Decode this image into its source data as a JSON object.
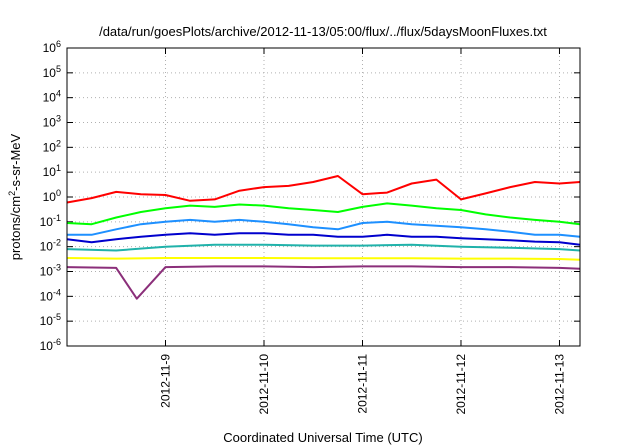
{
  "chart_data": {
    "type": "line",
    "title": "/data/run/goesPlots/archive/2012-11-13/05:00/flux/../flux/5daysMoonFluxes.txt",
    "xlabel": "Coordinated Universal Time (UTC)",
    "ylabel": {
      "prefix": "protons/cm",
      "sup": "2",
      "suffix": "-s-sr-MeV"
    },
    "yscale": "log",
    "ylim": [
      1e-06,
      1000000.0
    ],
    "xlim": [
      "2012-11-08 00:00",
      "2012-11-13 05:00"
    ],
    "grid": true,
    "y_ticks": [
      {
        "value": 1e-06,
        "base": "10",
        "exp": "-6"
      },
      {
        "value": 1e-05,
        "base": "10",
        "exp": "-5"
      },
      {
        "value": 0.0001,
        "base": "10",
        "exp": "-4"
      },
      {
        "value": 0.001,
        "base": "10",
        "exp": "-3"
      },
      {
        "value": 0.01,
        "base": "10",
        "exp": "-2"
      },
      {
        "value": 0.1,
        "base": "10",
        "exp": "-1"
      },
      {
        "value": 1.0,
        "base": "10",
        "exp": "0"
      },
      {
        "value": 10.0,
        "base": "10",
        "exp": "1"
      },
      {
        "value": 100.0,
        "base": "10",
        "exp": "2"
      },
      {
        "value": 1000.0,
        "base": "10",
        "exp": "3"
      },
      {
        "value": 10000.0,
        "base": "10",
        "exp": "4"
      },
      {
        "value": 100000.0,
        "base": "10",
        "exp": "5"
      },
      {
        "value": 1000000.0,
        "base": "10",
        "exp": "6"
      }
    ],
    "x_ticks": [
      "2012-11-9",
      "2012-11-10",
      "2012-11-11",
      "2012-11-12",
      "2012-11-13"
    ],
    "x_tick_dates": [
      "2012-11-09 00:00",
      "2012-11-10 00:00",
      "2012-11-11 00:00",
      "2012-11-12 00:00",
      "2012-11-13 00:00"
    ],
    "series": [
      {
        "color": "#ff0000",
        "x": [
          "2012-11-08 00:00",
          "2012-11-08 06:00",
          "2012-11-08 12:00",
          "2012-11-08 18:00",
          "2012-11-09 00:00",
          "2012-11-09 06:00",
          "2012-11-09 12:00",
          "2012-11-09 18:00",
          "2012-11-10 00:00",
          "2012-11-10 06:00",
          "2012-11-10 12:00",
          "2012-11-10 18:00",
          "2012-11-11 00:00",
          "2012-11-11 06:00",
          "2012-11-11 12:00",
          "2012-11-11 18:00",
          "2012-11-12 00:00",
          "2012-11-12 06:00",
          "2012-11-12 12:00",
          "2012-11-12 18:00",
          "2012-11-13 00:00",
          "2012-11-13 05:00"
        ],
        "y": [
          0.6,
          0.9,
          1.6,
          1.3,
          1.2,
          0.7,
          0.8,
          1.8,
          2.5,
          2.8,
          4,
          7,
          1.3,
          1.5,
          3.5,
          5,
          0.8,
          1.4,
          2.5,
          4,
          3.5,
          4
        ]
      },
      {
        "color": "#00ff00",
        "x": [
          "2012-11-08 00:00",
          "2012-11-08 06:00",
          "2012-11-08 12:00",
          "2012-11-08 18:00",
          "2012-11-09 00:00",
          "2012-11-09 06:00",
          "2012-11-09 12:00",
          "2012-11-09 18:00",
          "2012-11-10 00:00",
          "2012-11-10 06:00",
          "2012-11-10 12:00",
          "2012-11-10 18:00",
          "2012-11-11 00:00",
          "2012-11-11 06:00",
          "2012-11-11 12:00",
          "2012-11-11 18:00",
          "2012-11-12 00:00",
          "2012-11-12 06:00",
          "2012-11-12 12:00",
          "2012-11-12 18:00",
          "2012-11-13 00:00",
          "2012-11-13 05:00"
        ],
        "y": [
          0.09,
          0.08,
          0.15,
          0.25,
          0.35,
          0.45,
          0.4,
          0.5,
          0.45,
          0.35,
          0.3,
          0.25,
          0.4,
          0.55,
          0.45,
          0.35,
          0.3,
          0.2,
          0.15,
          0.12,
          0.1,
          0.08
        ]
      },
      {
        "color": "#1e90ff",
        "x": [
          "2012-11-08 00:00",
          "2012-11-08 06:00",
          "2012-11-08 12:00",
          "2012-11-08 18:00",
          "2012-11-09 00:00",
          "2012-11-09 06:00",
          "2012-11-09 12:00",
          "2012-11-09 18:00",
          "2012-11-10 00:00",
          "2012-11-10 06:00",
          "2012-11-10 12:00",
          "2012-11-10 18:00",
          "2012-11-11 00:00",
          "2012-11-11 06:00",
          "2012-11-11 12:00",
          "2012-11-11 18:00",
          "2012-11-12 00:00",
          "2012-11-12 06:00",
          "2012-11-12 12:00",
          "2012-11-12 18:00",
          "2012-11-13 00:00",
          "2012-11-13 05:00"
        ],
        "y": [
          0.03,
          0.03,
          0.05,
          0.08,
          0.1,
          0.12,
          0.1,
          0.12,
          0.1,
          0.08,
          0.06,
          0.05,
          0.09,
          0.1,
          0.08,
          0.07,
          0.06,
          0.05,
          0.04,
          0.03,
          0.03,
          0.025
        ]
      },
      {
        "color": "#0000cd",
        "x": [
          "2012-11-08 00:00",
          "2012-11-08 06:00",
          "2012-11-08 12:00",
          "2012-11-08 18:00",
          "2012-11-09 00:00",
          "2012-11-09 06:00",
          "2012-11-09 12:00",
          "2012-11-09 18:00",
          "2012-11-10 00:00",
          "2012-11-10 06:00",
          "2012-11-10 12:00",
          "2012-11-10 18:00",
          "2012-11-11 00:00",
          "2012-11-11 06:00",
          "2012-11-11 12:00",
          "2012-11-11 18:00",
          "2012-11-12 00:00",
          "2012-11-12 06:00",
          "2012-11-12 12:00",
          "2012-11-12 18:00",
          "2012-11-13 00:00",
          "2012-11-13 05:00"
        ],
        "y": [
          0.02,
          0.015,
          0.02,
          0.025,
          0.03,
          0.035,
          0.03,
          0.035,
          0.035,
          0.03,
          0.03,
          0.025,
          0.025,
          0.03,
          0.025,
          0.025,
          0.022,
          0.02,
          0.018,
          0.016,
          0.015,
          0.012
        ]
      },
      {
        "color": "#20b2aa",
        "x": [
          "2012-11-08 00:00",
          "2012-11-08 12:00",
          "2012-11-09 00:00",
          "2012-11-09 12:00",
          "2012-11-10 00:00",
          "2012-11-10 12:00",
          "2012-11-11 00:00",
          "2012-11-11 12:00",
          "2012-11-12 00:00",
          "2012-11-12 12:00",
          "2012-11-13 00:00",
          "2012-11-13 05:00"
        ],
        "y": [
          0.008,
          0.007,
          0.01,
          0.012,
          0.012,
          0.011,
          0.011,
          0.012,
          0.01,
          0.009,
          0.008,
          0.007
        ]
      },
      {
        "color": "#ffff00",
        "x": [
          "2012-11-08 00:00",
          "2012-11-08 12:00",
          "2012-11-09 00:00",
          "2012-11-09 12:00",
          "2012-11-10 00:00",
          "2012-11-10 12:00",
          "2012-11-11 00:00",
          "2012-11-11 12:00",
          "2012-11-12 00:00",
          "2012-11-12 12:00",
          "2012-11-13 00:00",
          "2012-11-13 05:00"
        ],
        "y": [
          0.0035,
          0.0033,
          0.0035,
          0.0035,
          0.0035,
          0.0034,
          0.0034,
          0.0034,
          0.0033,
          0.0033,
          0.0032,
          0.003
        ]
      },
      {
        "color": "#8b2f7a",
        "x": [
          "2012-11-08 00:00",
          "2012-11-08 12:00",
          "2012-11-08 17:00",
          "2012-11-09 00:00",
          "2012-11-09 12:00",
          "2012-11-10 00:00",
          "2012-11-10 12:00",
          "2012-11-11 00:00",
          "2012-11-11 12:00",
          "2012-11-12 00:00",
          "2012-11-12 12:00",
          "2012-11-13 00:00",
          "2012-11-13 05:00"
        ],
        "y": [
          0.0015,
          0.0014,
          8e-05,
          0.0015,
          0.0016,
          0.0016,
          0.0015,
          0.0016,
          0.0016,
          0.0015,
          0.0015,
          0.0014,
          0.0013
        ]
      }
    ]
  }
}
